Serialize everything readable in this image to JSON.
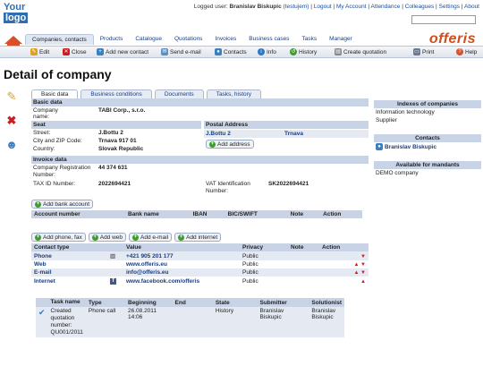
{
  "logo": {
    "line1": "Your",
    "line2": "logo"
  },
  "topnav": {
    "logged_prefix": "Logged user:",
    "user_name": "Branislav Biskupic",
    "user_login": "(testujem)",
    "links": [
      "Logout",
      "My Account",
      "Attendance",
      "Colleagues",
      "Settings",
      "About"
    ]
  },
  "menu": {
    "items": [
      "Companies, contacts",
      "Products",
      "Catalogue",
      "Quotations",
      "Invoices",
      "Business cases",
      "Tasks",
      "Manager"
    ]
  },
  "brand": "offeris",
  "toolbar": {
    "edit": "Edit",
    "close": "Close",
    "add_contact": "Add new contact",
    "send_email": "Send e-mail",
    "contacts": "Contacts",
    "info": "Info",
    "history": "History",
    "create_quotation": "Create quotation",
    "print": "Print",
    "help": "Help"
  },
  "page_title": "Detail of company",
  "tabs": [
    "Basic data",
    "Business conditions",
    "Documents",
    "Tasks, history"
  ],
  "basic": {
    "section_basic": "Basic data",
    "company_label": "Company name:",
    "company_value": "TABI Corp., s.r.o.",
    "section_seat": "Seat",
    "section_postal": "Postal Address",
    "street_label": "Street:",
    "street_value": "J.Bottu 2",
    "city_label": "City and ZIP Code:",
    "city_value": "Trnava 917 01",
    "country_label": "Country:",
    "country_value": "Slovak Republic",
    "postal_street": "J.Bottu 2",
    "postal_city": "Trnava",
    "add_address": "Add address",
    "section_invoice": "Invoice data",
    "reg_label": "Company Registration Number:",
    "reg_value": "44 374 631",
    "tax_label": "TAX ID Number:",
    "tax_value": "2022694421",
    "vat_label": "VAT Identification Number:",
    "vat_value": "SK2022694421"
  },
  "bank": {
    "add_button": "Add bank account",
    "headers": [
      "Account number",
      "Bank name",
      "IBAN",
      "BIC/SWIFT",
      "Note",
      "Action"
    ]
  },
  "contacts": {
    "buttons": [
      "Add phone, fax",
      "Add web",
      "Add e-mail",
      "Add internet"
    ],
    "headers": [
      "Contact type",
      "Value",
      "Privacy",
      "Note",
      "Action"
    ],
    "rows": [
      {
        "type": "Phone",
        "value": "+421 905 201 177",
        "privacy": "Public"
      },
      {
        "type": "Web",
        "value": "www.offeris.eu",
        "privacy": "Public"
      },
      {
        "type": "E-mail",
        "value": "info@offeris.eu",
        "privacy": "Public"
      },
      {
        "type": "Internet",
        "value": "www.facebook.com/offeris",
        "privacy": "Public"
      }
    ]
  },
  "tasks": {
    "headers": [
      "Task name",
      "Type",
      "Beginning",
      "End",
      "State",
      "Submitter",
      "Solutionist"
    ],
    "row": {
      "name": "Created quotation number: QU001/2011",
      "type": "Phone call",
      "beginning": "26.08.2011 14:06",
      "end": "",
      "state": "History",
      "submitter": "Branislav Biskupic",
      "solutionist": "Branislav Biskupic"
    }
  },
  "right": {
    "indexes_title": "Indexes of companies",
    "indexes": [
      "Information technology",
      "Supplier"
    ],
    "contacts_title": "Contacts",
    "contact_name": "Branislav Biskupic",
    "mandants_title": "Available for mandants",
    "mandant": "DEMO company"
  }
}
